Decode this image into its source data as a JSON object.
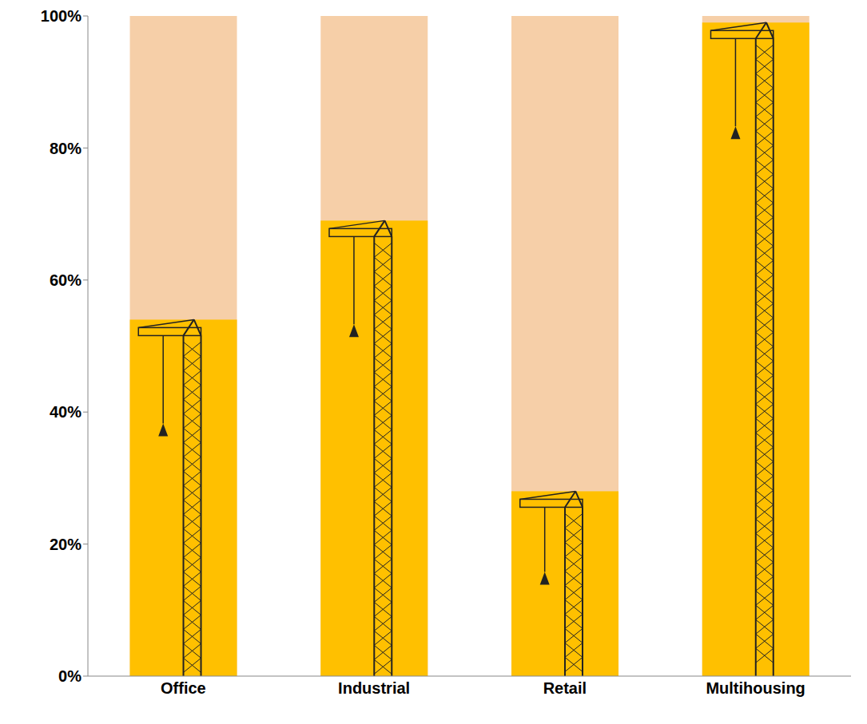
{
  "chart_data": {
    "type": "bar",
    "categories": [
      "Office",
      "Industrial",
      "Retail",
      "Multihousing"
    ],
    "values": [
      54,
      69,
      28,
      99
    ],
    "color": "#ffc000",
    "ylim": [
      0,
      100
    ],
    "yticks": [
      {
        "value": 0,
        "label": "0%"
      },
      {
        "value": 20,
        "label": "20%"
      },
      {
        "value": 40,
        "label": "40%"
      },
      {
        "value": 60,
        "label": "60%"
      },
      {
        "value": 80,
        "label": "80%"
      },
      {
        "value": 100,
        "label": "100%"
      }
    ],
    "grid": false
  }
}
